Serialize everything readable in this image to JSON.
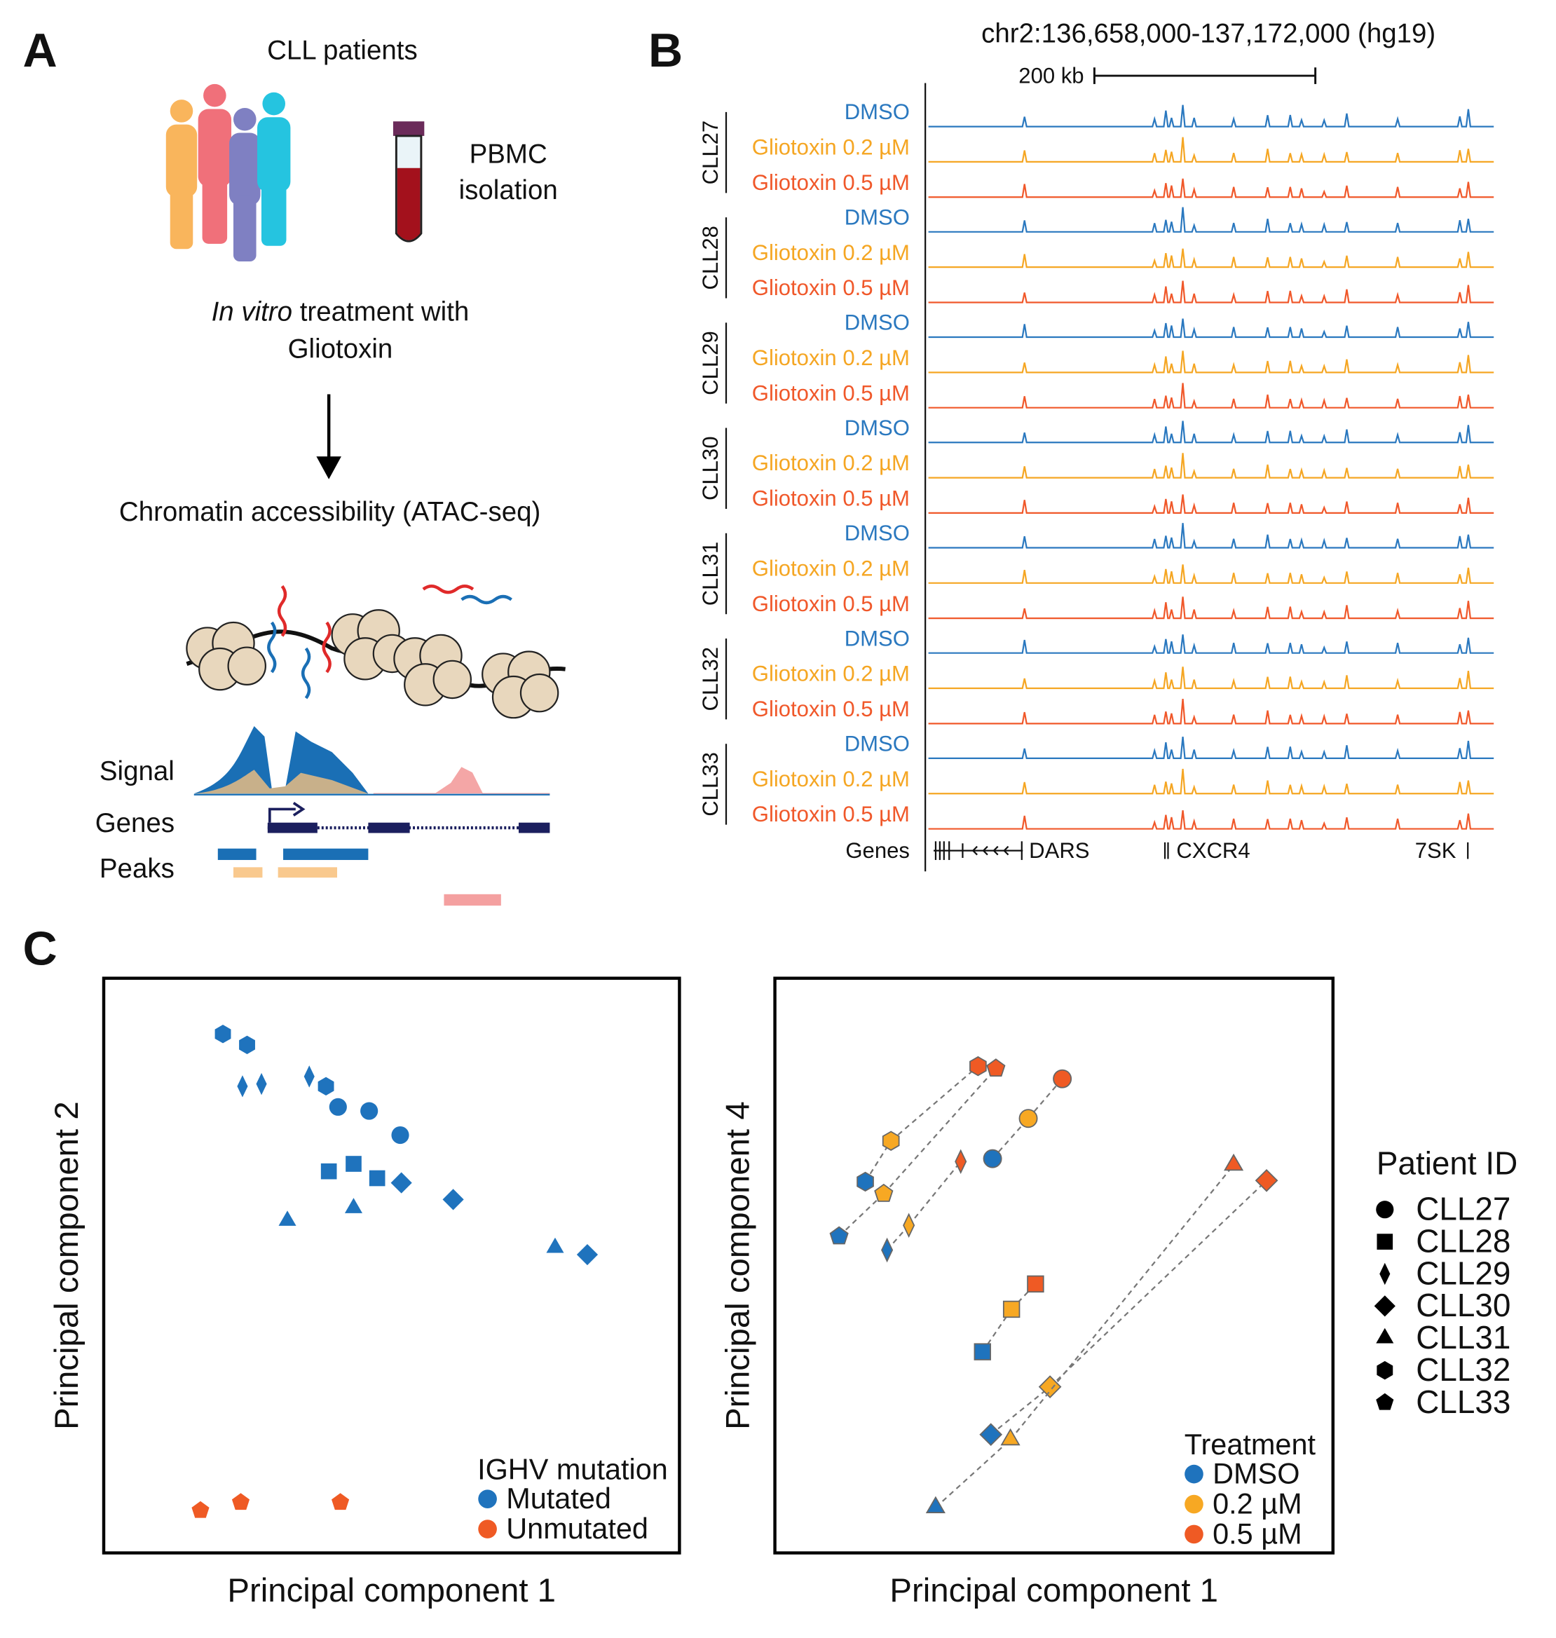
{
  "panel_a": {
    "letter": "A",
    "patients_label": "CLL patients",
    "isolation_lines": [
      "PBMC",
      "isolation"
    ],
    "treatment_italic": "In vitro",
    "treatment_rest": " treatment with",
    "treatment_line2": "Gliotoxin",
    "assay": "Chromatin accessibility (ATAC-seq)",
    "track_labels": [
      "Signal",
      "Genes",
      "Peaks"
    ]
  },
  "panel_b": {
    "letter": "B",
    "title": "chr2:136,658,000-137,172,000 (hg19)",
    "scale_label": "200 kb",
    "groups": [
      "CLL27",
      "CLL28",
      "CLL29",
      "CLL30",
      "CLL31",
      "CLL32",
      "CLL33"
    ],
    "tracks": [
      {
        "label": "DMSO",
        "color": "#2a78bf"
      },
      {
        "label": "Gliotoxin 0.2 µM",
        "color": "#f5a623"
      },
      {
        "label": "Gliotoxin 0.5 µM",
        "color": "#f0582a"
      }
    ],
    "signal_peaks": [
      [
        0.17,
        0.45
      ],
      [
        0.4,
        0.3
      ],
      [
        0.42,
        0.55
      ],
      [
        0.43,
        0.4
      ],
      [
        0.45,
        0.85
      ],
      [
        0.47,
        0.3
      ],
      [
        0.54,
        0.35
      ],
      [
        0.6,
        0.45
      ],
      [
        0.64,
        0.4
      ],
      [
        0.66,
        0.3
      ],
      [
        0.7,
        0.25
      ],
      [
        0.74,
        0.45
      ],
      [
        0.83,
        0.35
      ],
      [
        0.94,
        0.4
      ],
      [
        0.955,
        0.6
      ]
    ],
    "genes_label": "Genes",
    "genes": [
      "DARS",
      "CXCR4",
      "7SK"
    ]
  },
  "panel_c": {
    "letter": "C",
    "legend_title": "Patient ID",
    "patients": [
      {
        "name": "CLL27",
        "shape": "circle"
      },
      {
        "name": "CLL28",
        "shape": "square"
      },
      {
        "name": "CLL29",
        "shape": "thin-diamond"
      },
      {
        "name": "CLL30",
        "shape": "diamond"
      },
      {
        "name": "CLL31",
        "shape": "triangle"
      },
      {
        "name": "CLL32",
        "shape": "hexagon"
      },
      {
        "name": "CLL33",
        "shape": "pentagon"
      }
    ]
  },
  "chart_data": [
    {
      "type": "scatter",
      "x_label": "Principal component 1",
      "y_label": "Principal component 2",
      "xlim": [
        0,
        100
      ],
      "ylim": [
        0,
        100
      ],
      "legend_title": "IGHV mutation",
      "legend": [
        {
          "name": "Mutated",
          "color": "#1f73bd"
        },
        {
          "name": "Unmutated",
          "color": "#ef5a24"
        }
      ],
      "series": [
        {
          "patient": "CLL27",
          "group": "Mutated",
          "x": [
            40.7,
            46.1,
            51.5
          ],
          "y": [
            77.6,
            76.9,
            72.7
          ]
        },
        {
          "patient": "CLL28",
          "group": "Mutated",
          "x": [
            39.1,
            43.4,
            47.5
          ],
          "y": [
            66.4,
            67.7,
            65.2
          ]
        },
        {
          "patient": "CLL29",
          "group": "Mutated",
          "x": [
            24.1,
            27.4,
            35.7
          ],
          "y": [
            81.2,
            81.6,
            82.9
          ]
        },
        {
          "patient": "CLL30",
          "group": "Mutated",
          "x": [
            51.7,
            60.7,
            84.0
          ],
          "y": [
            64.4,
            61.5,
            51.9
          ]
        },
        {
          "patient": "CLL31",
          "group": "Mutated",
          "x": [
            31.9,
            43.4,
            78.4
          ],
          "y": [
            57.8,
            60.0,
            53.1
          ]
        },
        {
          "patient": "CLL32",
          "group": "Mutated",
          "x": [
            20.7,
            24.9,
            38.6
          ],
          "y": [
            90.3,
            88.4,
            81.2
          ]
        },
        {
          "patient": "CLL33",
          "group": "Unmutated",
          "x": [
            16.8,
            23.8,
            41.1
          ],
          "y": [
            7.4,
            8.8,
            8.8
          ]
        }
      ]
    },
    {
      "type": "scatter",
      "x_label": "Principal component 1",
      "y_label": "Principal component 4",
      "xlim": [
        0,
        100
      ],
      "ylim": [
        0,
        100
      ],
      "legend_title": "Treatment",
      "legend": [
        {
          "name": "DMSO",
          "color": "#1f73bd"
        },
        {
          "name": "0.2 µM",
          "color": "#f7a823"
        },
        {
          "name": "0.5 µM",
          "color": "#ef5a24"
        }
      ],
      "series": [
        {
          "patient": "CLL27",
          "x": [
            39.0,
            45.4,
            51.5
          ],
          "y": [
            68.6,
            75.6,
            82.5
          ]
        },
        {
          "patient": "CLL28",
          "x": [
            37.2,
            42.4,
            46.7
          ],
          "y": [
            35.0,
            42.4,
            46.8
          ]
        },
        {
          "patient": "CLL29",
          "x": [
            20.1,
            24.0,
            33.3
          ],
          "y": [
            52.7,
            57.0,
            68.1
          ]
        },
        {
          "patient": "CLL30",
          "x": [
            38.7,
            49.3,
            88.1
          ],
          "y": [
            20.6,
            28.9,
            64.8
          ]
        },
        {
          "patient": "CLL31",
          "x": [
            28.8,
            42.2,
            82.2
          ],
          "y": [
            7.9,
            19.7,
            67.5
          ]
        },
        {
          "patient": "CLL32",
          "x": [
            16.2,
            20.8,
            36.4
          ],
          "y": [
            64.6,
            71.7,
            84.7
          ]
        },
        {
          "patient": "CLL33",
          "x": [
            11.5,
            19.5,
            39.6
          ],
          "y": [
            55.1,
            62.5,
            84.3
          ]
        }
      ]
    }
  ]
}
